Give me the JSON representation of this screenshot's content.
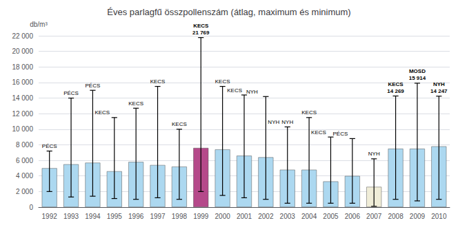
{
  "chart_data": {
    "type": "bar",
    "title": "Éves parlagfű összpollenszám (átlag, maximum és minimum)",
    "ylabel": "db/m³",
    "categories": [
      "1992",
      "1993",
      "1994",
      "1995",
      "1996",
      "1997",
      "1998",
      "1999",
      "2000",
      "2001",
      "2002",
      "2003",
      "2004",
      "2005",
      "2006",
      "2007",
      "2008",
      "2009",
      "2010"
    ],
    "values": [
      5000,
      5500,
      5700,
      4600,
      5800,
      5400,
      5200,
      7600,
      7400,
      6600,
      6400,
      4800,
      4800,
      3300,
      4000,
      2600,
      7500,
      7500,
      7800
    ],
    "min_values": [
      2000,
      1300,
      1400,
      1100,
      1000,
      1200,
      1000,
      2000,
      1500,
      1200,
      1000,
      500,
      500,
      500,
      500,
      100,
      1000,
      800,
      1000
    ],
    "max_values": [
      7200,
      14000,
      15000,
      11500,
      12700,
      15500,
      10000,
      21769,
      15500,
      14400,
      14200,
      10300,
      11500,
      9000,
      8800,
      6200,
      14269,
      15914,
      14247
    ],
    "colors": [
      "#acd8f0",
      "#acd8f0",
      "#acd8f0",
      "#acd8f0",
      "#acd8f0",
      "#acd8f0",
      "#acd8f0",
      "#b5498a",
      "#acd8f0",
      "#acd8f0",
      "#acd8f0",
      "#acd8f0",
      "#acd8f0",
      "#acd8f0",
      "#acd8f0",
      "#f0edd8",
      "#acd8f0",
      "#acd8f0",
      "#acd8f0"
    ],
    "ylim": [
      0,
      22000
    ],
    "yticks": [
      0,
      {
        "value": 2000,
        "label": "2 000"
      },
      {
        "value": 4000,
        "label": "4 000"
      },
      {
        "value": 6000,
        "label": "6 000"
      },
      {
        "value": 8000,
        "label": "8 000"
      },
      {
        "value": 10000,
        "label": "10 000"
      },
      {
        "value": 12000,
        "label": "12 000"
      },
      {
        "value": 14000,
        "label": "14 000"
      },
      {
        "value": 16000,
        "label": "16 000"
      },
      {
        "value": 18000,
        "label": "18 000"
      },
      {
        "value": 20000,
        "label": "20 000"
      },
      {
        "value": 22000,
        "label": "22 000"
      }
    ],
    "grid": true,
    "annotations": [
      {
        "category": "1992",
        "text": "PÉCS",
        "y": 7200
      },
      {
        "category": "1993",
        "text": "PÉCS",
        "y": 14000
      },
      {
        "category": "1994",
        "text": "PÉCS",
        "y": 15000
      },
      {
        "category": "1994",
        "text": "KECS",
        "y": 11500
      },
      {
        "category": "1996",
        "text": "KECS",
        "y": 12700
      },
      {
        "category": "1997",
        "text": "KECS",
        "y": 15500
      },
      {
        "category": "1998",
        "text": "KECS",
        "y": 10000
      },
      {
        "category": "2000",
        "text": "KECS",
        "y": 15500
      },
      {
        "category": "2001",
        "text": "KECS",
        "y": 14400
      },
      {
        "category": "2001",
        "text": "NYH",
        "y": 14200
      },
      {
        "category": "2002",
        "text": "NYH",
        "y": 10300
      },
      {
        "category": "2003",
        "text": "NYH",
        "y": 10300
      },
      {
        "category": "2004",
        "text": "KECS",
        "y": 11500
      },
      {
        "category": "2004",
        "text": "KECS",
        "y": 9000
      },
      {
        "category": "2005",
        "text": "PÉCS",
        "y": 8800
      },
      {
        "category": "2007",
        "text": "NYH",
        "y": 6200
      },
      {
        "category": "1999",
        "text": "KECS\n21 769",
        "y": 21769
      },
      {
        "category": "2008",
        "text": "KECS\n14 269",
        "y": 14269
      },
      {
        "category": "2009",
        "text": "MOSD\n15 914",
        "y": 15914
      },
      {
        "category": "2010",
        "text": "NYH\n14 247",
        "y": 14247
      }
    ]
  }
}
